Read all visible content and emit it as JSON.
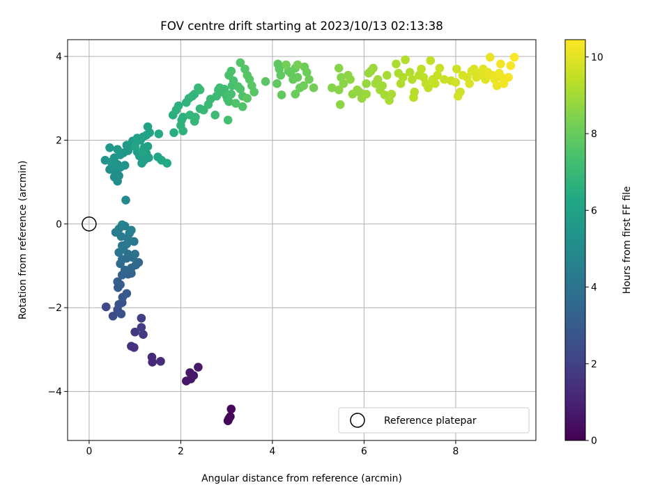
{
  "chart_data": {
    "type": "scatter",
    "title": "FOV centre drift starting at 2023/10/13 02:13:38",
    "xlabel": "Angular distance from reference (arcmin)",
    "ylabel": "Rotation from reference (arcmin)",
    "xlim": [
      -0.47,
      9.75
    ],
    "ylim": [
      -5.17,
      4.4
    ],
    "xticks": [
      0,
      2,
      4,
      6,
      8
    ],
    "yticks": [
      -4,
      -2,
      0,
      2,
      4
    ],
    "grid": true,
    "colormap": "viridis",
    "colorbar": {
      "label": "Hours from first FF file",
      "range": [
        0,
        10.45
      ],
      "ticks": [
        0,
        2,
        4,
        6,
        8,
        10
      ]
    },
    "legend": {
      "location": "lower-right",
      "entries": [
        {
          "label": "Reference platepar",
          "marker": "open-circle"
        }
      ]
    },
    "reference_point": {
      "x": 0,
      "y": 0
    },
    "points": [
      [
        3.03,
        -4.7,
        0.1
      ],
      [
        3.05,
        -4.65,
        0.15
      ],
      [
        3.1,
        -4.42,
        0.2
      ],
      [
        3.08,
        -4.6,
        0.18
      ],
      [
        2.12,
        -3.75,
        0.6
      ],
      [
        2.22,
        -3.7,
        0.65
      ],
      [
        2.28,
        -3.62,
        0.7
      ],
      [
        2.38,
        -3.42,
        0.75
      ],
      [
        2.2,
        -3.55,
        0.68
      ],
      [
        1.38,
        -3.3,
        1.2
      ],
      [
        1.56,
        -3.28,
        1.3
      ],
      [
        1.37,
        -3.18,
        1.25
      ],
      [
        0.92,
        -2.92,
        1.5
      ],
      [
        0.98,
        -2.95,
        1.55
      ],
      [
        1.0,
        -2.58,
        1.7
      ],
      [
        1.18,
        -2.64,
        1.8
      ],
      [
        1.14,
        -2.47,
        1.85
      ],
      [
        1.14,
        -2.25,
        1.9
      ],
      [
        0.37,
        -1.98,
        2.3
      ],
      [
        0.52,
        -2.2,
        2.4
      ],
      [
        0.62,
        -2.05,
        2.5
      ],
      [
        0.7,
        -2.15,
        2.6
      ],
      [
        0.65,
        -1.92,
        2.65
      ],
      [
        0.72,
        -1.88,
        2.7
      ],
      [
        0.73,
        -1.75,
        2.8
      ],
      [
        0.82,
        -1.66,
        2.9
      ],
      [
        0.63,
        -1.52,
        3.0
      ],
      [
        0.68,
        -1.45,
        3.05
      ],
      [
        0.62,
        -1.38,
        3.1
      ],
      [
        0.72,
        -1.22,
        3.2
      ],
      [
        0.85,
        -1.2,
        3.3
      ],
      [
        0.92,
        -1.18,
        3.35
      ],
      [
        0.78,
        -1.1,
        3.4
      ],
      [
        0.92,
        -1.05,
        3.45
      ],
      [
        1.02,
        -0.98,
        3.5
      ],
      [
        1.08,
        -0.92,
        3.55
      ],
      [
        0.68,
        -0.95,
        3.6
      ],
      [
        0.72,
        -0.85,
        3.7
      ],
      [
        0.82,
        -0.82,
        3.75
      ],
      [
        0.95,
        -0.8,
        3.8
      ],
      [
        0.85,
        -0.72,
        3.9
      ],
      [
        1.0,
        -0.72,
        3.95
      ],
      [
        0.65,
        -0.68,
        4.0
      ],
      [
        0.75,
        -0.6,
        4.05
      ],
      [
        0.72,
        -0.52,
        4.1
      ],
      [
        0.82,
        -0.48,
        4.15
      ],
      [
        0.98,
        -0.42,
        4.2
      ],
      [
        0.85,
        -0.35,
        4.25
      ],
      [
        0.7,
        -0.3,
        4.3
      ],
      [
        0.88,
        -0.22,
        4.35
      ],
      [
        0.58,
        -0.2,
        4.4
      ],
      [
        0.65,
        -0.12,
        4.45
      ],
      [
        0.92,
        -0.15,
        4.5
      ],
      [
        0.78,
        -0.05,
        4.55
      ],
      [
        0.72,
        -0.02,
        4.6
      ],
      [
        0.8,
        0.57,
        4.9
      ],
      [
        0.62,
        1.02,
        5.0
      ],
      [
        0.55,
        1.12,
        5.05
      ],
      [
        0.65,
        1.15,
        5.1
      ],
      [
        0.58,
        1.25,
        5.15
      ],
      [
        0.45,
        1.3,
        5.2
      ],
      [
        0.52,
        1.38,
        5.25
      ],
      [
        0.62,
        1.42,
        5.3
      ],
      [
        0.78,
        1.4,
        5.3
      ],
      [
        0.68,
        1.35,
        5.35
      ],
      [
        0.35,
        1.52,
        5.35
      ],
      [
        0.48,
        1.48,
        5.4
      ],
      [
        0.55,
        1.58,
        5.45
      ],
      [
        0.75,
        1.7,
        5.5
      ],
      [
        0.68,
        1.65,
        5.5
      ],
      [
        0.85,
        1.75,
        5.55
      ],
      [
        0.62,
        1.78,
        5.6
      ],
      [
        0.45,
        1.82,
        5.6
      ],
      [
        0.9,
        1.85,
        5.65
      ],
      [
        0.82,
        1.88,
        5.65
      ],
      [
        1.0,
        1.92,
        5.7
      ],
      [
        0.95,
        1.98,
        5.7
      ],
      [
        1.12,
        2.0,
        5.75
      ],
      [
        1.1,
        1.62,
        5.75
      ],
      [
        1.05,
        1.72,
        5.8
      ],
      [
        1.15,
        1.45,
        5.8
      ],
      [
        1.2,
        1.52,
        5.85
      ],
      [
        1.3,
        1.58,
        5.85
      ],
      [
        1.25,
        1.68,
        5.9
      ],
      [
        1.2,
        1.82,
        5.9
      ],
      [
        1.28,
        1.85,
        5.95
      ],
      [
        1.18,
        2.08,
        5.95
      ],
      [
        1.25,
        2.12,
        6.0
      ],
      [
        1.32,
        2.18,
        6.0
      ],
      [
        1.28,
        2.32,
        6.05
      ],
      [
        1.05,
        2.05,
        6.05
      ],
      [
        1.0,
        1.85,
        6.1
      ],
      [
        1.15,
        1.72,
        6.1
      ],
      [
        1.5,
        1.6,
        6.2
      ],
      [
        1.58,
        1.52,
        6.25
      ],
      [
        1.7,
        1.45,
        6.3
      ],
      [
        1.52,
        2.15,
        6.3
      ],
      [
        1.85,
        2.18,
        6.5
      ],
      [
        1.83,
        2.6,
        6.55
      ],
      [
        1.9,
        2.72,
        6.6
      ],
      [
        1.95,
        2.82,
        6.6
      ],
      [
        2.02,
        2.48,
        6.65
      ],
      [
        2.05,
        2.55,
        6.65
      ],
      [
        2.0,
        2.35,
        6.7
      ],
      [
        2.05,
        2.22,
        6.7
      ],
      [
        2.12,
        2.9,
        6.75
      ],
      [
        2.18,
        3.0,
        6.75
      ],
      [
        2.25,
        3.05,
        6.8
      ],
      [
        2.3,
        3.1,
        6.8
      ],
      [
        2.2,
        2.6,
        6.85
      ],
      [
        2.32,
        2.55,
        6.85
      ],
      [
        2.3,
        2.45,
        6.9
      ],
      [
        2.42,
        2.75,
        6.9
      ],
      [
        2.5,
        2.72,
        6.95
      ],
      [
        2.38,
        3.25,
        7.0
      ],
      [
        2.42,
        3.2,
        7.0
      ],
      [
        2.6,
        2.85,
        7.05
      ],
      [
        2.65,
        2.98,
        7.05
      ],
      [
        2.75,
        2.6,
        7.1
      ],
      [
        2.78,
        3.05,
        7.1
      ],
      [
        2.82,
        3.2,
        7.15
      ],
      [
        2.85,
        3.25,
        7.15
      ],
      [
        2.9,
        3.15,
        7.2
      ],
      [
        2.95,
        3.22,
        7.2
      ],
      [
        3.0,
        3.05,
        7.25
      ],
      [
        3.02,
        2.98,
        7.25
      ],
      [
        3.05,
        2.92,
        7.3
      ],
      [
        3.03,
        2.48,
        7.3
      ],
      [
        3.1,
        3.1,
        7.35
      ],
      [
        3.12,
        3.3,
        7.35
      ],
      [
        3.15,
        3.42,
        7.4
      ],
      [
        3.05,
        3.55,
        7.4
      ],
      [
        3.1,
        3.65,
        7.45
      ],
      [
        3.25,
        3.28,
        7.45
      ],
      [
        3.3,
        3.22,
        7.5
      ],
      [
        3.35,
        3.05,
        7.5
      ],
      [
        3.2,
        2.88,
        7.55
      ],
      [
        3.35,
        2.8,
        7.55
      ],
      [
        3.3,
        3.85,
        7.6
      ],
      [
        3.4,
        3.7,
        7.6
      ],
      [
        3.45,
        3.55,
        7.65
      ],
      [
        3.5,
        3.45,
        7.65
      ],
      [
        3.55,
        3.3,
        7.7
      ],
      [
        3.6,
        3.15,
        7.7
      ],
      [
        3.45,
        3.0,
        7.75
      ],
      [
        3.85,
        3.4,
        7.75
      ],
      [
        4.12,
        3.82,
        7.8
      ],
      [
        4.15,
        3.7,
        7.8
      ],
      [
        4.18,
        3.55,
        7.85
      ],
      [
        4.1,
        3.35,
        7.85
      ],
      [
        4.2,
        3.08,
        7.9
      ],
      [
        4.35,
        3.65,
        7.9
      ],
      [
        4.4,
        3.6,
        7.95
      ],
      [
        4.5,
        3.72,
        7.95
      ],
      [
        4.55,
        3.5,
        8.0
      ],
      [
        4.45,
        3.45,
        8.0
      ],
      [
        4.6,
        3.25,
        8.05
      ],
      [
        4.5,
        3.1,
        8.05
      ],
      [
        4.7,
        3.75,
        8.1
      ],
      [
        4.75,
        3.62,
        8.1
      ],
      [
        4.8,
        3.45,
        8.15
      ],
      [
        4.68,
        3.3,
        8.15
      ],
      [
        4.9,
        3.25,
        8.2
      ],
      [
        4.3,
        3.8,
        8.2
      ],
      [
        4.55,
        3.8,
        8.25
      ],
      [
        5.3,
        3.25,
        8.5
      ],
      [
        5.45,
        3.72,
        8.55
      ],
      [
        5.5,
        3.5,
        8.55
      ],
      [
        5.55,
        3.35,
        8.6
      ],
      [
        5.45,
        3.2,
        8.6
      ],
      [
        5.48,
        2.85,
        8.65
      ],
      [
        5.65,
        3.55,
        8.65
      ],
      [
        5.7,
        3.45,
        8.7
      ],
      [
        5.75,
        3.1,
        8.7
      ],
      [
        5.85,
        3.2,
        8.75
      ],
      [
        5.9,
        3.15,
        8.75
      ],
      [
        5.95,
        3.0,
        8.8
      ],
      [
        6.05,
        3.35,
        8.8
      ],
      [
        6.1,
        3.6,
        8.85
      ],
      [
        6.15,
        3.65,
        8.85
      ],
      [
        6.2,
        3.72,
        8.9
      ],
      [
        6.05,
        3.1,
        8.9
      ],
      [
        6.25,
        3.35,
        8.95
      ],
      [
        6.3,
        3.45,
        8.95
      ],
      [
        6.35,
        3.2,
        9.0
      ],
      [
        6.4,
        3.3,
        9.0
      ],
      [
        6.45,
        3.08,
        9.05
      ],
      [
        6.5,
        3.55,
        9.05
      ],
      [
        6.6,
        3.1,
        9.1
      ],
      [
        6.55,
        2.95,
        9.1
      ],
      [
        6.7,
        3.82,
        9.15
      ],
      [
        6.75,
        3.6,
        9.15
      ],
      [
        6.85,
        3.5,
        9.2
      ],
      [
        6.8,
        3.35,
        9.2
      ],
      [
        6.9,
        3.92,
        9.25
      ],
      [
        7.0,
        3.62,
        9.25
      ],
      [
        7.05,
        3.45,
        9.3
      ],
      [
        7.1,
        3.15,
        9.3
      ],
      [
        7.08,
        3.02,
        9.35
      ],
      [
        7.2,
        3.55,
        9.35
      ],
      [
        7.25,
        3.7,
        9.4
      ],
      [
        7.3,
        3.5,
        9.4
      ],
      [
        7.35,
        3.35,
        9.45
      ],
      [
        7.4,
        3.25,
        9.45
      ],
      [
        7.45,
        3.9,
        9.5
      ],
      [
        7.5,
        3.45,
        9.5
      ],
      [
        7.55,
        3.35,
        9.55
      ],
      [
        7.6,
        3.55,
        9.55
      ],
      [
        7.65,
        3.72,
        9.6
      ],
      [
        7.75,
        3.45,
        9.6
      ],
      [
        7.9,
        3.42,
        9.65
      ],
      [
        8.0,
        3.38,
        9.7
      ],
      [
        8.02,
        3.7,
        9.7
      ],
      [
        8.05,
        3.05,
        9.75
      ],
      [
        8.1,
        3.15,
        9.75
      ],
      [
        8.15,
        3.55,
        9.8
      ],
      [
        8.25,
        3.5,
        9.8
      ],
      [
        8.3,
        3.35,
        9.85
      ],
      [
        8.35,
        3.65,
        9.85
      ],
      [
        8.4,
        3.7,
        9.9
      ],
      [
        8.45,
        3.5,
        9.9
      ],
      [
        8.5,
        3.6,
        9.95
      ],
      [
        8.55,
        3.55,
        9.95
      ],
      [
        8.6,
        3.7,
        10.0
      ],
      [
        8.65,
        3.45,
        10.0
      ],
      [
        8.7,
        3.62,
        10.05
      ],
      [
        8.75,
        3.98,
        10.1
      ],
      [
        8.8,
        3.55,
        10.1
      ],
      [
        8.85,
        3.45,
        10.15
      ],
      [
        8.9,
        3.3,
        10.15
      ],
      [
        8.95,
        3.6,
        10.2
      ],
      [
        9.0,
        3.5,
        10.2
      ],
      [
        8.98,
        3.82,
        10.25
      ],
      [
        9.05,
        3.35,
        10.25
      ],
      [
        9.15,
        3.5,
        10.3
      ],
      [
        9.2,
        3.78,
        10.35
      ],
      [
        9.28,
        3.98,
        10.4
      ]
    ]
  }
}
